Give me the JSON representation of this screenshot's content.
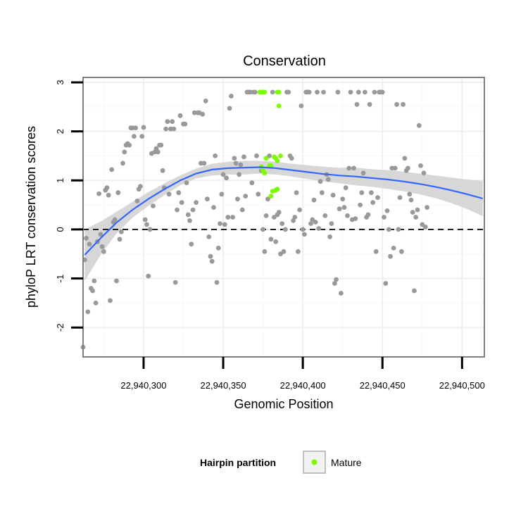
{
  "chart_data": {
    "type": "scatter",
    "title": "Conservation",
    "xlabel": "Genomic Position",
    "ylabel": "phyloP LRT conservation scores",
    "xlim": [
      22940262,
      22940514
    ],
    "ylim": [
      -2.6,
      3.1
    ],
    "x_ticks": [
      22940300,
      22940350,
      22940400,
      22940450,
      22940500
    ],
    "x_tick_labels": [
      "22,940,300",
      "22,940,350",
      "22,940,400",
      "22,940,450",
      "22,940,500"
    ],
    "y_ticks": [
      -2,
      -1,
      0,
      1,
      2,
      3
    ],
    "y_tick_labels": [
      "-2",
      "-1",
      "0",
      "1",
      "2",
      "3"
    ],
    "grid": true,
    "reference_line": {
      "y": 0,
      "style": "dashed"
    },
    "legend": {
      "title": "Hairpin partition",
      "position": "bottom",
      "entries": [
        "Mature"
      ]
    },
    "colors": {
      "other": "#999999",
      "mature": "#7CFC00",
      "smooth": "#3366FF",
      "band": "#D3D3D3",
      "panel_border": "#7f7f7f"
    },
    "series": [
      {
        "name": "",
        "color": "#999999",
        "points": [
          [
            22940262,
            -2.4
          ],
          [
            22940263,
            -0.62
          ],
          [
            22940264,
            -0.18
          ],
          [
            22940265,
            -1.68
          ],
          [
            22940266,
            -0.3
          ],
          [
            22940267,
            -1.2
          ],
          [
            22940268,
            -1.25
          ],
          [
            22940269,
            -1.05
          ],
          [
            22940270,
            -1.5
          ],
          [
            22940271,
            -0.25
          ],
          [
            22940272,
            0.73
          ],
          [
            22940273,
            -0.1
          ],
          [
            22940274,
            -0.35
          ],
          [
            22940275,
            -0.45
          ],
          [
            22940276,
            0.8
          ],
          [
            22940277,
            0.85
          ],
          [
            22940278,
            0.7
          ],
          [
            22940279,
            -1.45
          ],
          [
            22940280,
            1.22
          ],
          [
            22940281,
            0.15
          ],
          [
            22940282,
            0.2
          ],
          [
            22940283,
            -1.05
          ],
          [
            22940284,
            0.75
          ],
          [
            22940285,
            -0.2
          ],
          [
            22940286,
            -0.05
          ],
          [
            22940287,
            1.35
          ],
          [
            22940288,
            1.58
          ],
          [
            22940289,
            1.72
          ],
          [
            22940290,
            1.75
          ],
          [
            22940291,
            1.72
          ],
          [
            22940292,
            2.07
          ],
          [
            22940293,
            2.07
          ],
          [
            22940294,
            1.9
          ],
          [
            22940295,
            2.07
          ],
          [
            22940296,
            0.58
          ],
          [
            22940297,
            0.82
          ],
          [
            22940298,
            0.88
          ],
          [
            22940299,
            1.9
          ],
          [
            22940300,
            2.08
          ],
          [
            22940301,
            0.2
          ],
          [
            22940302,
            0.1
          ],
          [
            22940303,
            -0.95
          ],
          [
            22940304,
            0.0
          ],
          [
            22940305,
            1.55
          ],
          [
            22940306,
            0.48
          ],
          [
            22940307,
            1.58
          ],
          [
            22940308,
            1.65
          ],
          [
            22940309,
            1.58
          ],
          [
            22940310,
            1.72
          ],
          [
            22940311,
            1.72
          ],
          [
            22940312,
            1.2
          ],
          [
            22940313,
            0.85
          ],
          [
            22940314,
            2.05
          ],
          [
            22940315,
            2.2
          ],
          [
            22940316,
            0.72
          ],
          [
            22940317,
            2.05
          ],
          [
            22940318,
            2.2
          ],
          [
            22940319,
            2.05
          ],
          [
            22940320,
            -1.08
          ],
          [
            22940321,
            0.4
          ],
          [
            22940322,
            0.75
          ],
          [
            22940323,
            2.32
          ],
          [
            22940324,
            0.55
          ],
          [
            22940325,
            2.15
          ],
          [
            22940326,
            2.15
          ],
          [
            22940327,
            0.95
          ],
          [
            22940328,
            0.3
          ],
          [
            22940329,
            0.18
          ],
          [
            22940330,
            -0.3
          ],
          [
            22940331,
            0.4
          ],
          [
            22940332,
            2.38
          ],
          [
            22940333,
            0.55
          ],
          [
            22940334,
            2.38
          ],
          [
            22940335,
            2.38
          ],
          [
            22940336,
            1.35
          ],
          [
            22940337,
            2.35
          ],
          [
            22940338,
            1.35
          ],
          [
            22940339,
            2.62
          ],
          [
            22940340,
            0.62
          ],
          [
            22940341,
            -0.15
          ],
          [
            22940342,
            -0.55
          ],
          [
            22940343,
            -0.65
          ],
          [
            22940344,
            0.45
          ],
          [
            22940345,
            1.5
          ],
          [
            22940346,
            -1.08
          ],
          [
            22940347,
            -0.38
          ],
          [
            22940348,
            0.12
          ],
          [
            22940349,
            0.72
          ],
          [
            22940350,
            1.12
          ],
          [
            22940351,
            0.1
          ],
          [
            22940352,
            1.05
          ],
          [
            22940353,
            0.25
          ],
          [
            22940354,
            2.47
          ],
          [
            22940355,
            2.72
          ],
          [
            22940356,
            0.25
          ],
          [
            22940357,
            1.45
          ],
          [
            22940358,
            1.35
          ],
          [
            22940359,
            0.62
          ],
          [
            22940360,
            1.12
          ],
          [
            22940361,
            1.32
          ],
          [
            22940362,
            0.4
          ],
          [
            22940363,
            1.48
          ],
          [
            22940364,
            0.68
          ],
          [
            22940365,
            2.8
          ],
          [
            22940366,
            2.8
          ],
          [
            22940367,
            2.8
          ],
          [
            22940368,
            0.95
          ],
          [
            22940369,
            2.8
          ],
          [
            22940370,
            2.8
          ],
          [
            22940371,
            1.5
          ],
          [
            22940372,
            0.72
          ],
          [
            22940373,
            2.8
          ],
          [
            22940374,
            1.2
          ],
          [
            22940375,
            0.0
          ],
          [
            22940376,
            -0.45
          ],
          [
            22940377,
            0.28
          ],
          [
            22940378,
            0.62
          ],
          [
            22940379,
            1.5
          ],
          [
            22940380,
            -0.2
          ],
          [
            22940381,
            2.8
          ],
          [
            22940382,
            0.25
          ],
          [
            22940383,
            -0.25
          ],
          [
            22940384,
            0.3
          ],
          [
            22940385,
            0.35
          ],
          [
            22940386,
            -0.5
          ],
          [
            22940387,
            0.12
          ],
          [
            22940388,
            -0.45
          ],
          [
            22940389,
            0.0
          ],
          [
            22940390,
            2.8
          ],
          [
            22940391,
            2.8
          ],
          [
            22940392,
            1.5
          ],
          [
            22940393,
            1.45
          ],
          [
            22940394,
            0.18
          ],
          [
            22940395,
            0.25
          ],
          [
            22940396,
            0.75
          ],
          [
            22940397,
            -0.45
          ],
          [
            22940398,
            0.4
          ],
          [
            22940399,
            2.52
          ],
          [
            22940400,
            0.0
          ],
          [
            22940401,
            -0.1
          ],
          [
            22940402,
            2.8
          ],
          [
            22940403,
            2.8
          ],
          [
            22940404,
            2.8
          ],
          [
            22940405,
            0.12
          ],
          [
            22940406,
            0.2
          ],
          [
            22940407,
            0.6
          ],
          [
            22940408,
            0.15
          ],
          [
            22940409,
            2.8
          ],
          [
            22940410,
            0.02
          ],
          [
            22940411,
            0.98
          ],
          [
            22940412,
            0.75
          ],
          [
            22940413,
            2.8
          ],
          [
            22940414,
            0.28
          ],
          [
            22940415,
            1.12
          ],
          [
            22940416,
            1.02
          ],
          [
            22940417,
            -0.15
          ],
          [
            22940418,
            0.12
          ],
          [
            22940419,
            0.7
          ],
          [
            22940420,
            -1.1
          ],
          [
            22940421,
            -1.02
          ],
          [
            22940422,
            2.8
          ],
          [
            22940423,
            0.42
          ],
          [
            22940424,
            -1.3
          ],
          [
            22940425,
            0.62
          ],
          [
            22940426,
            0.45
          ],
          [
            22940427,
            0.85
          ],
          [
            22940428,
            0.28
          ],
          [
            22940429,
            1.25
          ],
          [
            22940430,
            2.8
          ],
          [
            22940431,
            0.2
          ],
          [
            22940432,
            1.25
          ],
          [
            22940433,
            0.22
          ],
          [
            22940434,
            2.55
          ],
          [
            22940435,
            2.8
          ],
          [
            22940436,
            0.5
          ],
          [
            22940437,
            0.75
          ],
          [
            22940438,
            1.15
          ],
          [
            22940439,
            2.8
          ],
          [
            22940440,
            0.25
          ],
          [
            22940441,
            0.3
          ],
          [
            22940442,
            2.55
          ],
          [
            22940443,
            0.75
          ],
          [
            22940444,
            0.55
          ],
          [
            22940445,
            2.8
          ],
          [
            22940446,
            -0.45
          ],
          [
            22940447,
            0.65
          ],
          [
            22940448,
            2.8
          ],
          [
            22940449,
            2.8
          ],
          [
            22940450,
            2.8
          ],
          [
            22940451,
            0.25
          ],
          [
            22940452,
            -1.1
          ],
          [
            22940453,
            0.38
          ],
          [
            22940454,
            0.0
          ],
          [
            22940455,
            -0.55
          ],
          [
            22940456,
            1.25
          ],
          [
            22940457,
            -0.38
          ],
          [
            22940458,
            1.25
          ],
          [
            22940459,
            2.55
          ],
          [
            22940460,
            0.0
          ],
          [
            22940461,
            0.65
          ],
          [
            22940462,
            -0.45
          ],
          [
            22940463,
            2.55
          ],
          [
            22940464,
            1.45
          ],
          [
            22940465,
            1.2
          ],
          [
            22940466,
            1.25
          ],
          [
            22940467,
            0.72
          ],
          [
            22940468,
            0.6
          ],
          [
            22940469,
            0.35
          ],
          [
            22940470,
            -1.25
          ],
          [
            22940471,
            0.25
          ],
          [
            22940472,
            0.4
          ],
          [
            22940473,
            2.12
          ],
          [
            22940474,
            1.3
          ],
          [
            22940475,
            0.1
          ],
          [
            22940476,
            1.15
          ],
          [
            22940477,
            0.05
          ],
          [
            22940478,
            0.45
          ]
        ]
      },
      {
        "name": "Mature",
        "color": "#7CFC00",
        "points": [
          [
            22940373,
            2.8
          ],
          [
            22940374,
            2.8
          ],
          [
            22940375,
            2.8
          ],
          [
            22940376,
            2.8
          ],
          [
            22940384,
            2.8
          ],
          [
            22940385,
            2.8
          ],
          [
            22940385,
            2.52
          ],
          [
            22940374,
            1.28
          ],
          [
            22940375,
            1.2
          ],
          [
            22940376,
            1.15
          ],
          [
            22940377,
            1.45
          ],
          [
            22940379,
            1.3
          ],
          [
            22940380,
            1.3
          ],
          [
            22940382,
            1.48
          ],
          [
            22940383,
            1.45
          ],
          [
            22940384,
            1.4
          ],
          [
            22940386,
            1.5
          ],
          [
            22940380,
            0.68
          ],
          [
            22940381,
            0.78
          ],
          [
            22940383,
            0.8
          ],
          [
            22940384,
            0.82
          ]
        ]
      }
    ],
    "smooth": {
      "x": [
        22940263,
        22940273,
        22940283,
        22940293,
        22940303,
        22940313,
        22940323,
        22940333,
        22940343,
        22940353,
        22940363,
        22940373,
        22940383,
        22940393,
        22940403,
        22940413,
        22940423,
        22940433,
        22940443,
        22940453,
        22940463,
        22940473,
        22940483,
        22940493,
        22940503,
        22940513
      ],
      "y": [
        -0.52,
        -0.18,
        0.14,
        0.4,
        0.62,
        0.82,
        1.0,
        1.14,
        1.22,
        1.25,
        1.26,
        1.27,
        1.25,
        1.21,
        1.17,
        1.13,
        1.1,
        1.08,
        1.05,
        1.02,
        0.98,
        0.93,
        0.87,
        0.8,
        0.72,
        0.63
      ],
      "lower": [
        -1.05,
        -0.52,
        -0.08,
        0.24,
        0.48,
        0.7,
        0.9,
        1.04,
        1.1,
        1.12,
        1.12,
        1.14,
        1.12,
        1.08,
        1.03,
        0.98,
        0.94,
        0.9,
        0.87,
        0.83,
        0.78,
        0.72,
        0.64,
        0.54,
        0.42,
        0.27
      ],
      "upper": [
        0.0,
        0.16,
        0.36,
        0.56,
        0.76,
        0.94,
        1.1,
        1.24,
        1.34,
        1.38,
        1.4,
        1.4,
        1.38,
        1.34,
        1.31,
        1.28,
        1.26,
        1.26,
        1.23,
        1.21,
        1.18,
        1.14,
        1.1,
        1.06,
        1.02,
        0.99
      ]
    }
  }
}
